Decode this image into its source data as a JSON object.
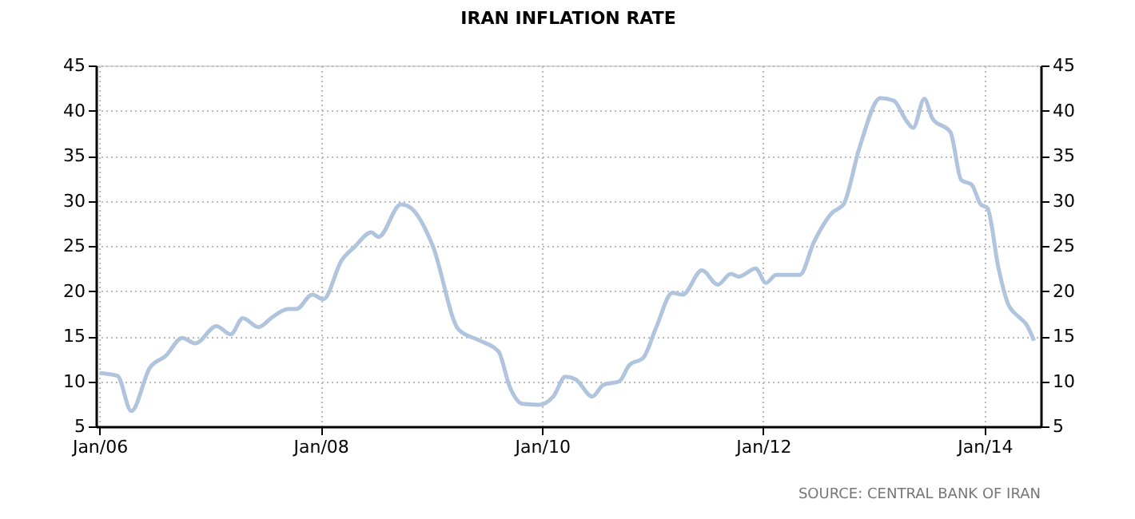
{
  "chart_data": {
    "type": "line",
    "title": "IRAN INFLATION RATE",
    "annotations": [
      "SOURCE: CENTRAL BANK OF IRAN"
    ],
    "x": [
      "2006-01-01",
      "2006-03-01",
      "2006-04-16",
      "2006-06-16",
      "2006-08-07",
      "2006-10-01",
      "2006-11-13",
      "2007-01-22",
      "2007-03-10",
      "2007-04-19",
      "2007-06-10",
      "2007-07-25",
      "2007-09-16",
      "2007-10-13",
      "2007-12-04",
      "2008-01-10",
      "2008-03-10",
      "2008-04-22",
      "2008-06-16",
      "2008-07-10",
      "2008-09-22",
      "2008-10-25",
      "2009-01-04",
      "2009-04-01",
      "2009-06-10",
      "2009-08-10",
      "2009-09-16",
      "2009-10-28",
      "2009-12-22",
      "2010-02-07",
      "2010-03-19",
      "2010-04-22",
      "2010-06-16",
      "2010-07-22",
      "2010-09-13",
      "2010-10-16",
      "2010-12-01",
      "2011-01-13",
      "2011-03-07",
      "2011-04-10",
      "2011-06-13",
      "2011-08-04",
      "2011-09-16",
      "2011-10-13",
      "2011-12-07",
      "2012-01-10",
      "2012-02-13",
      "2012-05-01",
      "2012-06-16",
      "2012-08-16",
      "2012-09-22",
      "2012-11-13",
      "2013-01-22",
      "2013-03-07",
      "2013-04-19",
      "2013-05-10",
      "2013-06-16",
      "2013-07-13",
      "2013-09-10",
      "2013-10-16",
      "2013-11-19",
      "2013-12-19",
      "2014-01-10",
      "2014-02-16",
      "2014-03-19",
      "2014-04-25",
      "2014-05-19",
      "2014-06-13"
    ],
    "series": [
      {
        "color": "#b0c4de",
        "values": [
          10.9,
          10.6,
          6.7,
          11.5,
          12.8,
          14.8,
          14.2,
          16.1,
          15.2,
          17.0,
          16.0,
          17.1,
          18.0,
          18.0,
          19.6,
          19.1,
          23.4,
          24.9,
          26.5,
          26.0,
          29.6,
          29.2,
          25.1,
          15.7,
          14.5,
          13.3,
          9.4,
          7.5,
          7.4,
          8.3,
          10.5,
          10.2,
          8.3,
          9.6,
          10.0,
          11.8,
          12.6,
          16.0,
          19.8,
          19.6,
          22.3,
          20.7,
          21.9,
          21.6,
          22.5,
          20.9,
          21.8,
          21.8,
          25.4,
          28.7,
          29.6,
          35.8,
          41.4,
          41.1,
          38.8,
          38.1,
          41.3,
          39.1,
          37.6,
          32.3,
          31.8,
          29.6,
          29.2,
          22.5,
          18.6,
          17.1,
          16.3,
          14.5
        ]
      }
    ],
    "xlim": [
      "2005-12-20",
      "2014-07-05"
    ],
    "xticks": [
      {
        "value": "2006-01-01",
        "label": "Jan/06"
      },
      {
        "value": "2008-01-01",
        "label": "Jan/08"
      },
      {
        "value": "2010-01-01",
        "label": "Jan/10"
      },
      {
        "value": "2012-01-01",
        "label": "Jan/12"
      },
      {
        "value": "2014-01-01",
        "label": "Jan/14"
      }
    ],
    "ylim": [
      5,
      45
    ],
    "yticks": [
      5,
      10,
      15,
      20,
      25,
      30,
      35,
      40,
      45
    ],
    "y2lim": [
      5,
      45
    ],
    "y2ticks": [
      5,
      10,
      15,
      20,
      25,
      30,
      35,
      40,
      45
    ],
    "grid": true,
    "marker": "none",
    "line_style": "solid"
  }
}
